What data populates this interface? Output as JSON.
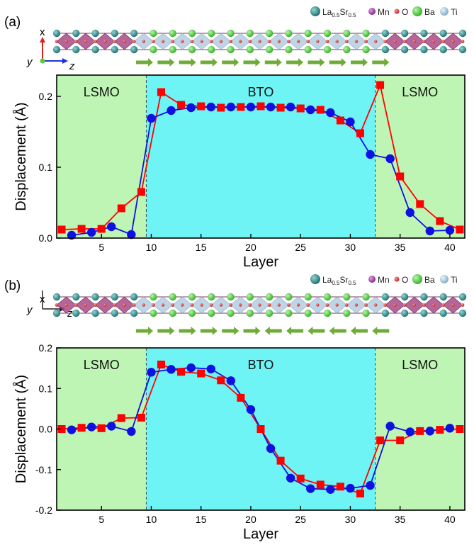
{
  "legend": {
    "items": [
      {
        "label": "La",
        "sub1": "0.5",
        "mid": "Sr",
        "sub2": "0.5",
        "color": "#2a7f7f"
      },
      {
        "label": "Mn",
        "color": "#a03ca8"
      },
      {
        "label": "O",
        "color": "#e03030"
      },
      {
        "label": "Ba",
        "color": "#4fcf3f"
      },
      {
        "label": "Ti",
        "color": "#a9cce3"
      }
    ]
  },
  "axes_labels": {
    "x": "x",
    "y": "y",
    "z": "z"
  },
  "colors": {
    "lsmo_region": "#bff5b4",
    "bto_region": "#6ff4f6",
    "red_series": "#ff0000",
    "blue_series": "#1010e0",
    "arrow": "#6fab39",
    "mn_octahedron": "#a3407f",
    "ti_octahedron": "#a9c7dc"
  },
  "chart_data": [
    {
      "panel_label": "(a)",
      "type": "line",
      "xlabel": "Layer",
      "ylabel": "Displacement (Å)",
      "xlim": [
        0.5,
        41.5
      ],
      "ylim": [
        0,
        0.23
      ],
      "xticks": [
        5,
        10,
        15,
        20,
        25,
        30,
        35,
        40
      ],
      "yticks": [
        0.0,
        0.1,
        0.2
      ],
      "ytick_labels": [
        "0.0",
        "0.1",
        "0.2"
      ],
      "regions": [
        {
          "label": "LSMO",
          "x0": 0.5,
          "x1": 9.5,
          "kind": "lsmo"
        },
        {
          "label": "BTO",
          "x0": 9.5,
          "x1": 32.5,
          "kind": "bto"
        },
        {
          "label": "LSMO",
          "x0": 32.5,
          "x1": 41.5,
          "kind": "lsmo"
        }
      ],
      "arrows": [
        1,
        1,
        1,
        1,
        1,
        1,
        1,
        1,
        1,
        1,
        1,
        1
      ],
      "series": [
        {
          "marker": "square",
          "color": "#ff0000",
          "x": [
            1,
            3,
            5,
            7,
            9,
            11,
            13,
            15,
            17,
            19,
            21,
            23,
            25,
            27,
            29,
            31,
            33,
            35,
            37,
            39,
            41
          ],
          "y": [
            0.012,
            0.013,
            0.013,
            0.042,
            0.065,
            0.206,
            0.188,
            0.186,
            0.184,
            0.185,
            0.186,
            0.184,
            0.183,
            0.181,
            0.166,
            0.148,
            0.216,
            0.087,
            0.048,
            0.024,
            0.012
          ]
        },
        {
          "marker": "circle",
          "color": "#1010e0",
          "x": [
            2,
            4,
            6,
            8,
            10,
            12,
            14,
            16,
            18,
            20,
            22,
            24,
            26,
            28,
            30,
            32,
            34,
            36,
            38,
            40
          ],
          "y": [
            0.004,
            0.008,
            0.016,
            0.005,
            0.169,
            0.18,
            0.184,
            0.185,
            0.185,
            0.185,
            0.185,
            0.185,
            0.181,
            0.177,
            0.164,
            0.118,
            0.112,
            0.036,
            0.01,
            0.011
          ]
        }
      ]
    },
    {
      "panel_label": "(b)",
      "type": "line",
      "xlabel": "Layer",
      "ylabel": "Displacement (Å)",
      "xlim": [
        0.5,
        41.5
      ],
      "ylim": [
        -0.2,
        0.2
      ],
      "xticks": [
        5,
        10,
        15,
        20,
        25,
        30,
        35,
        40
      ],
      "yticks": [
        -0.2,
        -0.1,
        0.0,
        0.1,
        0.2
      ],
      "ytick_labels": [
        "-0.2",
        "-0.1",
        "0.0",
        "0.1",
        "0.2"
      ],
      "regions": [
        {
          "label": "LSMO",
          "x0": 0.5,
          "x1": 9.5,
          "kind": "lsmo"
        },
        {
          "label": "BTO",
          "x0": 9.5,
          "x1": 32.5,
          "kind": "bto"
        },
        {
          "label": "LSMO",
          "x0": 32.5,
          "x1": 41.5,
          "kind": "lsmo"
        }
      ],
      "arrows": [
        1,
        1,
        1,
        1,
        1,
        1,
        -1,
        -1,
        -1,
        -1,
        -1,
        -1
      ],
      "series": [
        {
          "marker": "square",
          "color": "#ff0000",
          "x": [
            1,
            3,
            5,
            7,
            9,
            11,
            13,
            15,
            17,
            19,
            21,
            23,
            25,
            27,
            29,
            31,
            33,
            35,
            37,
            39,
            41
          ],
          "y": [
            0.0,
            0.003,
            0.002,
            0.027,
            0.028,
            0.159,
            0.141,
            0.137,
            0.12,
            0.077,
            0.0,
            -0.078,
            -0.122,
            -0.137,
            -0.142,
            -0.159,
            -0.028,
            -0.028,
            -0.005,
            -0.002,
            0.0
          ]
        },
        {
          "marker": "circle",
          "color": "#1010e0",
          "x": [
            2,
            4,
            6,
            8,
            10,
            12,
            14,
            16,
            18,
            20,
            22,
            24,
            26,
            28,
            30,
            32,
            34,
            36,
            38,
            40
          ],
          "y": [
            -0.002,
            0.005,
            0.007,
            -0.006,
            0.14,
            0.147,
            0.151,
            0.148,
            0.119,
            0.048,
            -0.048,
            -0.121,
            -0.147,
            -0.149,
            -0.146,
            -0.139,
            0.007,
            -0.007,
            -0.005,
            0.002
          ]
        }
      ]
    }
  ]
}
